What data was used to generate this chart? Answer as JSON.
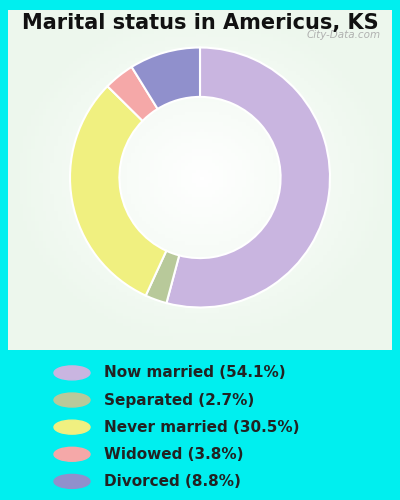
{
  "title": "Marital status in Americus, KS",
  "slices": [
    {
      "label": "Now married (54.1%)",
      "value": 54.1,
      "color": "#c9b5e0"
    },
    {
      "label": "Separated (2.7%)",
      "value": 2.7,
      "color": "#b8c99a"
    },
    {
      "label": "Never married (30.5%)",
      "value": 30.5,
      "color": "#f0f080"
    },
    {
      "label": "Widowed (3.8%)",
      "value": 3.8,
      "color": "#f5a8a8"
    },
    {
      "label": "Divorced (8.8%)",
      "value": 8.8,
      "color": "#9090cc"
    }
  ],
  "bg_cyan": "#00EFEF",
  "bg_chart_color1": "#e8f5e8",
  "bg_chart_color2": "#f8fff8",
  "donut_width": 0.38,
  "watermark": "City-Data.com",
  "title_fontsize": 15,
  "legend_fontsize": 11,
  "text_color": "#222222",
  "title_color": "#111111"
}
